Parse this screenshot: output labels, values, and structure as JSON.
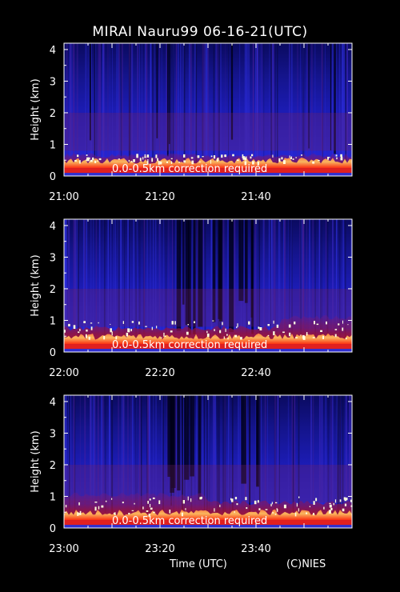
{
  "title": "MIRAI Nauru99 06-16-21(UTC)",
  "xlabel": "Time (UTC)",
  "credit": "(C)NIES",
  "colors": {
    "background": "#000000",
    "low": "#1a1ad0",
    "mid": "#cc1010",
    "high": "#ffffff"
  },
  "chart_data": [
    {
      "type": "heatmap",
      "ylabel": "Height (km)",
      "ylim": [
        0,
        4.2
      ],
      "yticks": [
        "0",
        "1",
        "2",
        "3",
        "4"
      ],
      "xticks": [
        "21:00",
        "21:20",
        "21:40"
      ],
      "xlim": [
        "21:00",
        "22:00"
      ],
      "annotation": "0.0-0.5km correction required",
      "boundary_layer_top_km": 0.65
    },
    {
      "type": "heatmap",
      "ylabel": "Height (km)",
      "ylim": [
        0,
        4.2
      ],
      "yticks": [
        "0",
        "1",
        "2",
        "3",
        "4"
      ],
      "xticks": [
        "22:00",
        "22:20",
        "22:40"
      ],
      "xlim": [
        "22:00",
        "23:00"
      ],
      "annotation": "0.0-0.5km correction required",
      "boundary_layer_top_km": 0.75
    },
    {
      "type": "heatmap",
      "ylabel": "Height (km)",
      "ylim": [
        0,
        4.2
      ],
      "yticks": [
        "0",
        "1",
        "2",
        "3",
        "4"
      ],
      "xticks": [
        "23:00",
        "23:20",
        "23:40"
      ],
      "xlim": [
        "23:00",
        "24:00"
      ],
      "annotation": "0.0-0.5km correction required",
      "boundary_layer_top_km": 0.8
    }
  ]
}
